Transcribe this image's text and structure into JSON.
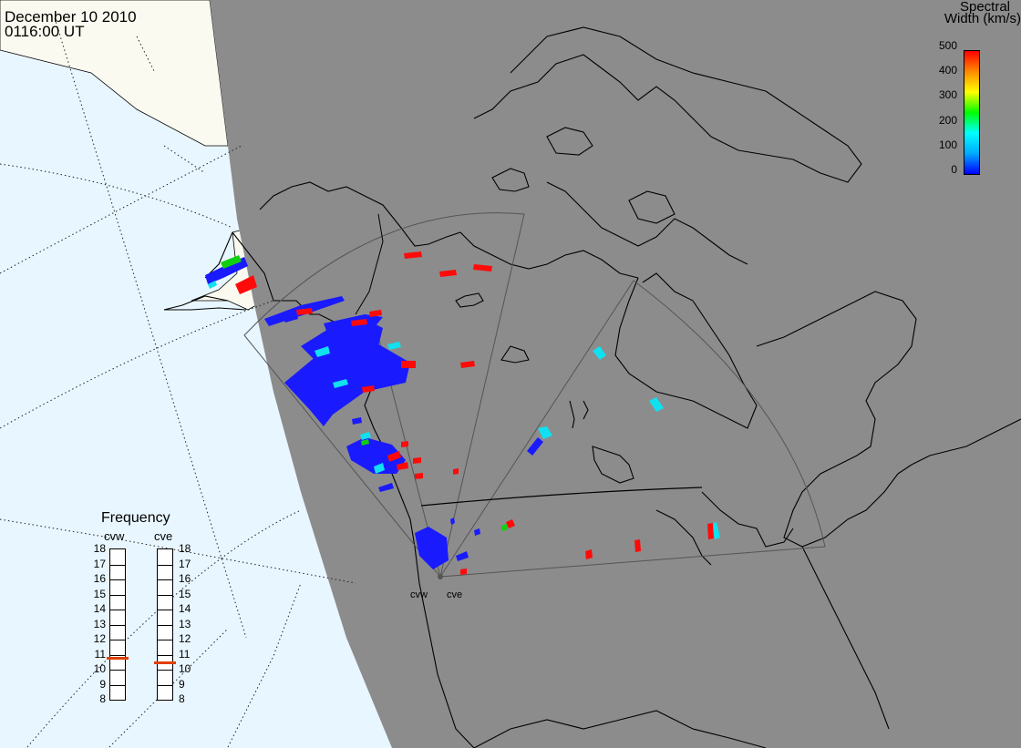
{
  "title": {
    "date": "December 10 2010",
    "time": "0116:00 UT"
  },
  "colorbar": {
    "title_line1": "Spectral",
    "title_line2": "Width (km/s)",
    "ticks": [
      "500",
      "400",
      "300",
      "200",
      "100",
      "0"
    ],
    "min": 0,
    "max": 500,
    "colors": [
      "#0000ff",
      "#00aaff",
      "#00ffff",
      "#00ff00",
      "#ffff00",
      "#ff8800",
      "#ff0000"
    ]
  },
  "frequency": {
    "label": "Frequency",
    "radars": [
      {
        "name": "cvw",
        "value_mhz": 10.8
      },
      {
        "name": "cve",
        "value_mhz": 10.5
      }
    ],
    "ticks": [
      "18",
      "17",
      "16",
      "15",
      "14",
      "13",
      "12",
      "11",
      "10",
      "9",
      "8"
    ],
    "min": 8,
    "max": 18,
    "marker_color": "#e04000"
  },
  "stations": [
    {
      "name": "cvw"
    },
    {
      "name": "cve"
    }
  ],
  "colors": {
    "night_shade": "#8c8c8c",
    "ocean": "#e8f6ff",
    "land_day": "#fbfaf0",
    "coast": "#000000",
    "fov": "#555555",
    "low_width": "#1a1aff",
    "mid_width": "#10e0f0",
    "high_width": "#ff0a0a",
    "green_width": "#10d010"
  }
}
